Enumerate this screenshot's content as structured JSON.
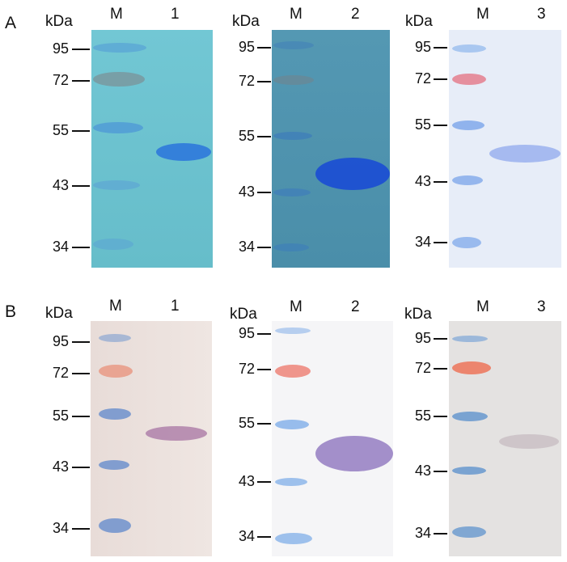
{
  "rows": [
    {
      "label": "A",
      "panels": [
        {
          "unit": "kDa",
          "marker_lane": "M",
          "sample_lane": "1",
          "markers": [
            "95",
            "72",
            "55",
            "43",
            "34"
          ],
          "background": "#6cc3d1",
          "marker_color": "#5a9fd3",
          "band_color": "#2f76d8"
        },
        {
          "unit": "kDa",
          "marker_lane": "M",
          "sample_lane": "2",
          "markers": [
            "95",
            "72",
            "55",
            "43",
            "34"
          ],
          "background": "#4e93ad",
          "marker_color": "#3e7fb8",
          "band_color": "#1a4fd0"
        },
        {
          "unit": "kDa",
          "marker_lane": "M",
          "sample_lane": "3",
          "markers": [
            "95",
            "72",
            "55",
            "43",
            "34"
          ],
          "background": "#e6ecf8",
          "marker_color": "#8bb2ec",
          "band_color": "#9fb5ef"
        }
      ]
    },
    {
      "label": "B",
      "panels": [
        {
          "unit": "kDa",
          "marker_lane": "M",
          "sample_lane": "1",
          "markers": [
            "95",
            "72",
            "55",
            "43",
            "34"
          ],
          "background": "#ece2df",
          "marker_color": "#7b9ccc",
          "band_color": "#b98ab0"
        },
        {
          "unit": "kDa",
          "marker_lane": "M",
          "sample_lane": "2",
          "markers": [
            "95",
            "72",
            "55",
            "43",
            "34"
          ],
          "background": "#f6f6f8",
          "marker_color": "#8ab8ea",
          "band_color": "#9a84c4"
        },
        {
          "unit": "kDa",
          "marker_lane": "M",
          "sample_lane": "3",
          "markers": [
            "95",
            "72",
            "55",
            "43",
            "34"
          ],
          "background": "#e4e2e1",
          "marker_color": "#6e9ccf",
          "band_color": "#c9c2c6"
        }
      ]
    }
  ]
}
